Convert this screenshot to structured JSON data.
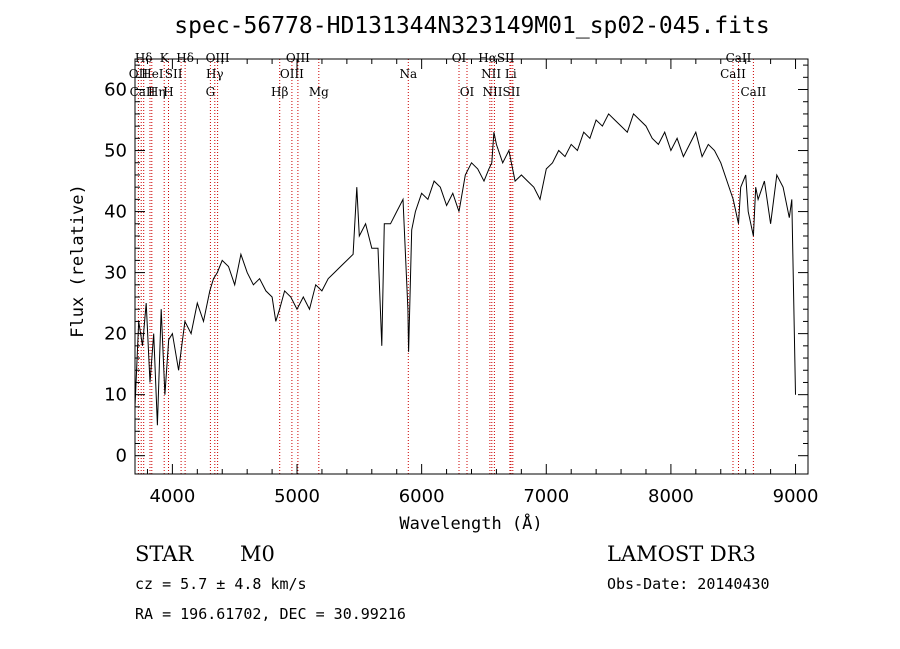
{
  "chart_data": {
    "type": "line",
    "title": "spec-56778-HD131344N323149M01_sp02-045.fits",
    "xlabel": "Wavelength (Å)",
    "ylabel": "Flux (relative)",
    "xlim": [
      3700,
      9100
    ],
    "ylim": [
      -3,
      65
    ],
    "xticks": [
      4000,
      5000,
      6000,
      7000,
      8000,
      9000
    ],
    "yticks": [
      0,
      10,
      20,
      30,
      40,
      50,
      60
    ],
    "line_color": "#000000",
    "marker_color": "#cc0000",
    "spectrum": {
      "x": [
        3700,
        3730,
        3760,
        3790,
        3820,
        3850,
        3880,
        3910,
        3940,
        3970,
        4000,
        4050,
        4100,
        4150,
        4200,
        4250,
        4300,
        4330,
        4360,
        4400,
        4450,
        4500,
        4550,
        4600,
        4650,
        4700,
        4750,
        4800,
        4830,
        4860,
        4900,
        4950,
        5000,
        5050,
        5100,
        5150,
        5200,
        5250,
        5300,
        5350,
        5400,
        5450,
        5480,
        5500,
        5550,
        5600,
        5650,
        5680,
        5700,
        5750,
        5800,
        5850,
        5890,
        5895,
        5920,
        5950,
        6000,
        6050,
        6100,
        6150,
        6200,
        6250,
        6300,
        6350,
        6400,
        6450,
        6500,
        6540,
        6563,
        6580,
        6600,
        6650,
        6700,
        6750,
        6800,
        6850,
        6900,
        6950,
        7000,
        7050,
        7100,
        7150,
        7200,
        7250,
        7300,
        7350,
        7400,
        7450,
        7500,
        7550,
        7600,
        7650,
        7700,
        7750,
        7800,
        7850,
        7900,
        7950,
        8000,
        8050,
        8100,
        8150,
        8200,
        8250,
        8300,
        8350,
        8400,
        8450,
        8500,
        8542,
        8560,
        8600,
        8620,
        8662,
        8680,
        8700,
        8750,
        8800,
        8850,
        8900,
        8950,
        8970,
        9000
      ],
      "y": [
        8,
        22,
        18,
        25,
        12,
        20,
        5,
        24,
        10,
        19,
        20,
        14,
        22,
        20,
        25,
        22,
        27,
        29,
        30,
        32,
        31,
        28,
        33,
        30,
        28,
        29,
        27,
        26,
        22,
        24,
        27,
        26,
        24,
        26,
        24,
        28,
        27,
        29,
        30,
        31,
        32,
        33,
        44,
        36,
        38,
        34,
        34,
        18,
        38,
        38,
        40,
        42,
        24,
        17,
        37,
        40,
        43,
        42,
        45,
        44,
        41,
        43,
        40,
        46,
        48,
        47,
        45,
        47,
        48,
        53,
        51,
        48,
        50,
        45,
        46,
        45,
        44,
        42,
        47,
        48,
        50,
        49,
        51,
        50,
        53,
        52,
        55,
        54,
        56,
        55,
        54,
        53,
        56,
        55,
        54,
        52,
        51,
        53,
        50,
        52,
        49,
        51,
        53,
        49,
        51,
        50,
        48,
        45,
        42,
        38,
        44,
        46,
        40,
        36,
        44,
        42,
        45,
        38,
        46,
        44,
        39,
        42,
        10
      ]
    },
    "lines": [
      {
        "label": "Hδ",
        "x": 3770
      },
      {
        "label": "OII",
        "x": 3727
      },
      {
        "label": "CaII",
        "x": 3750
      },
      {
        "label": "HeI",
        "x": 3820
      },
      {
        "label": "Hη",
        "x": 3835
      },
      {
        "label": "K",
        "x": 3934
      },
      {
        "label": "SII",
        "x": 4070
      },
      {
        "label": "H",
        "x": 3969
      },
      {
        "label": "Hδ",
        "x": 4102
      },
      {
        "label": "OIII",
        "x": 4363
      },
      {
        "label": "Hγ",
        "x": 4340
      },
      {
        "label": "G",
        "x": 4305
      },
      {
        "label": "Hβ",
        "x": 4861
      },
      {
        "label": "OIII",
        "x": 4959
      },
      {
        "label": "OIII",
        "x": 5007
      },
      {
        "label": "Mg",
        "x": 5175
      },
      {
        "label": "Na",
        "x": 5893
      },
      {
        "label": "OI",
        "x": 6300
      },
      {
        "label": "OI",
        "x": 6364
      },
      {
        "label": "Hα",
        "x": 6563
      },
      {
        "label": "NII",
        "x": 6548
      },
      {
        "label": "NII",
        "x": 6584
      },
      {
        "label": "SII",
        "x": 6717
      },
      {
        "label": "Li",
        "x": 6708
      },
      {
        "label": "SII",
        "x": 6731
      },
      {
        "label": "CaII",
        "x": 8542
      },
      {
        "label": "CaII",
        "x": 8498
      },
      {
        "label": "CaII",
        "x": 8662
      }
    ]
  },
  "info": {
    "class_label": "STAR",
    "subclass": "M0",
    "survey": "LAMOST DR3",
    "cz": "cz = 5.7 ± 4.8 km/s",
    "obs_date": "Obs-Date: 20140430",
    "coords": "RA = 196.61702, DEC =  30.99216"
  },
  "line_labels": {
    "row1": [
      {
        "text": "Hδ",
        "x": 3770
      },
      {
        "text": "K",
        "x": 3934
      },
      {
        "text": "Hδ",
        "x": 4102
      },
      {
        "text": "OIII",
        "x": 4363
      },
      {
        "text": "OIII",
        "x": 5007
      },
      {
        "text": "OI",
        "x": 6300
      },
      {
        "text": "HαSII",
        "x": 6600
      },
      {
        "text": "CaII",
        "x": 8542
      }
    ],
    "row2": [
      {
        "text": "OII",
        "x": 3727
      },
      {
        "text": "HeI",
        "x": 3840
      },
      {
        "text": "SII",
        "x": 4010
      },
      {
        "text": "Hγ",
        "x": 4340
      },
      {
        "text": "OIII",
        "x": 4959
      },
      {
        "text": "Na",
        "x": 5893
      },
      {
        "text": "NII Li",
        "x": 6620
      },
      {
        "text": "CaII",
        "x": 8498
      }
    ],
    "row3": [
      {
        "text": "CaII",
        "x": 3760
      },
      {
        "text": "Hη",
        "x": 3875
      },
      {
        "text": "H",
        "x": 3969
      },
      {
        "text": "G",
        "x": 4305
      },
      {
        "text": "Hβ",
        "x": 4861
      },
      {
        "text": "Mg",
        "x": 5175
      },
      {
        "text": "OI",
        "x": 6364
      },
      {
        "text": "NIISII",
        "x": 6640
      },
      {
        "text": "CaII",
        "x": 8662
      }
    ]
  }
}
